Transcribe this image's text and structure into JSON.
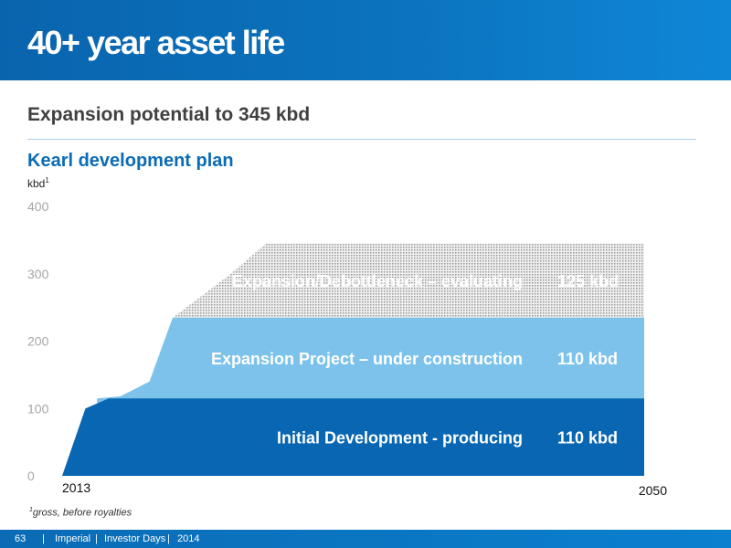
{
  "header": {
    "title": "40+ year asset life"
  },
  "subtitle": "Expansion potential to 345 kbd",
  "footnote": {
    "mark": "1",
    "text": "gross, before royalties"
  },
  "footer": {
    "page": "63",
    "sep": "|",
    "company": "Imperial",
    "event": "Investor Days",
    "year": "2014"
  },
  "chart_data": {
    "type": "area",
    "title": "Kearl development plan",
    "ylabel": "kbd",
    "ylabel_footnote_mark": "1",
    "ylim": [
      0,
      400
    ],
    "yticks": [
      "0",
      "100",
      "200",
      "300",
      "400"
    ],
    "xtick_labels": [
      "2013",
      "2050"
    ],
    "grid": false,
    "series": [
      {
        "name": "Initial Development - producing",
        "capacity_label": "110 kbd",
        "color": "#0866b3",
        "points": [
          [
            0.0,
            0
          ],
          [
            0.04,
            100
          ],
          [
            0.08,
            115
          ],
          [
            1.0,
            115
          ]
        ]
      },
      {
        "name": "Expansion Project – under construction",
        "capacity_label": "110 kbd",
        "color": "#7cc2eb",
        "points": [
          [
            0.06,
            115
          ],
          [
            0.1,
            118
          ],
          [
            0.15,
            140
          ],
          [
            0.19,
            235
          ],
          [
            1.0,
            235
          ]
        ]
      },
      {
        "name": "Expansion/Debottleneck – evaluating",
        "capacity_label": "125 kbd",
        "color": "#c8c8c8",
        "pattern": "dotted",
        "points": [
          [
            0.19,
            235
          ],
          [
            0.29,
            300
          ],
          [
            0.35,
            345
          ],
          [
            1.0,
            345
          ]
        ]
      }
    ]
  }
}
